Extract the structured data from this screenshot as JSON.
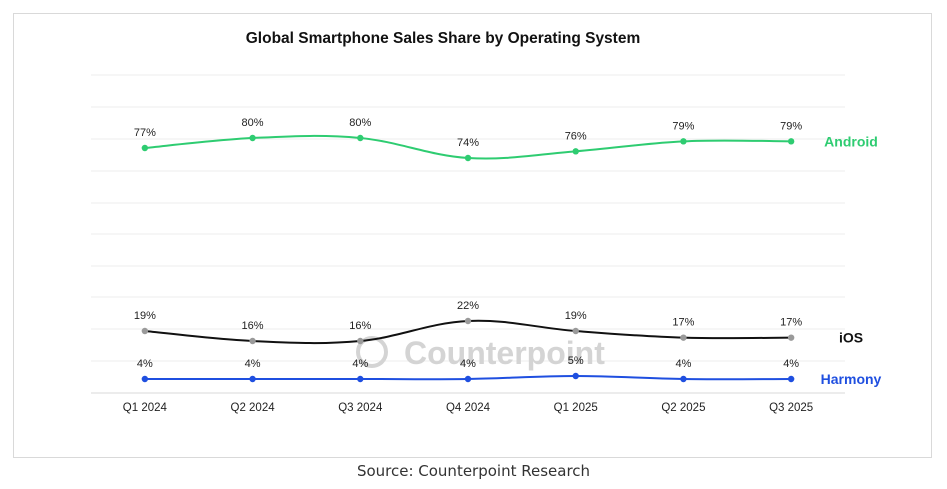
{
  "chart_data": {
    "type": "line",
    "title": "Global Smartphone Sales Share by Operating System",
    "categories": [
      "Q1 2024",
      "Q2 2024",
      "Q3 2024",
      "Q4 2024",
      "Q1 2025",
      "Q2 2025",
      "Q3 2025"
    ],
    "series": [
      {
        "name": "Android",
        "color": "#2ecc71",
        "values": [
          77,
          80,
          80,
          74,
          76,
          79,
          79
        ],
        "labels": [
          "77%",
          "80%",
          "80%",
          "74%",
          "76%",
          "79%",
          "79%"
        ]
      },
      {
        "name": "iOS",
        "color": "#111111",
        "values": [
          19,
          16,
          16,
          22,
          19,
          17,
          17
        ],
        "labels": [
          "19%",
          "16%",
          "16%",
          "22%",
          "19%",
          "17%",
          "17%"
        ]
      },
      {
        "name": "Harmony",
        "color": "#1f4fe0",
        "values": [
          4,
          4,
          4,
          4,
          5,
          4,
          4
        ],
        "labels": [
          "4%",
          "4%",
          "4%",
          "4%",
          "5%",
          "4%",
          "4%"
        ]
      }
    ],
    "xlabel": "",
    "ylabel": "",
    "grid": true,
    "legend": "right-inline",
    "watermark": "Counterpoint"
  },
  "source": "Source: Counterpoint Research"
}
